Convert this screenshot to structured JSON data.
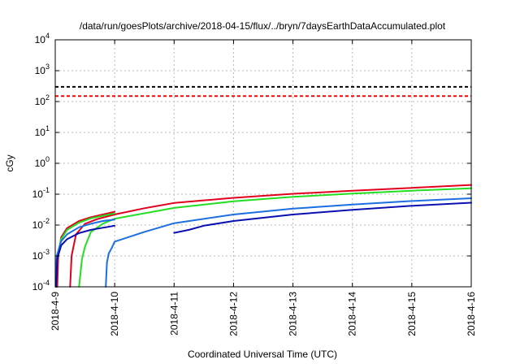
{
  "chart_data": {
    "type": "line",
    "title": "/data/run/goesPlots/archive/2018-04-15/flux/../bryn/7daysEarthDataAccumulated.plot",
    "xlabel": "Coordinated Universal Time (UTC)",
    "ylabel": "cGy",
    "xlim": [
      "2018-04-09",
      "2018-04-16"
    ],
    "ylim": [
      0.0001,
      10000
    ],
    "yscale": "log",
    "grid": true,
    "x_ticks": [
      "2018-4-9",
      "2018-4-10",
      "2018-4-11",
      "2018-4-12",
      "2018-4-13",
      "2018-4-14",
      "2018-4-15",
      "2018-4-16"
    ],
    "y_ticks": [
      {
        "base": "10",
        "exp": "-4"
      },
      {
        "base": "10",
        "exp": "-3"
      },
      {
        "base": "10",
        "exp": "-2"
      },
      {
        "base": "10",
        "exp": "-1"
      },
      {
        "base": "10",
        "exp": "0"
      },
      {
        "base": "10",
        "exp": "1"
      },
      {
        "base": "10",
        "exp": "2"
      },
      {
        "base": "10",
        "exp": "3"
      },
      {
        "base": "10",
        "exp": "4"
      }
    ],
    "reference_lines": [
      {
        "y": 300,
        "color": "#000000",
        "style": "dashed"
      },
      {
        "y": 150,
        "color": "#ff0000",
        "style": "dashed"
      }
    ],
    "series": [
      {
        "color": "#e0001b",
        "segments": [
          [
            [
              "2018-04-09T00:50",
              0.0001
            ],
            [
              "2018-04-09T01:12",
              0.001
            ],
            [
              "2018-04-09T02:24",
              0.004
            ],
            [
              "2018-04-09T04:48",
              0.008
            ],
            [
              "2018-04-09T09:36",
              0.0135
            ],
            [
              "2018-04-09T14:24",
              0.018
            ],
            [
              "2018-04-09T19:12",
              0.022
            ],
            [
              "2018-04-10T00:00",
              0.027
            ]
          ],
          [
            [
              "2018-04-09T06:00",
              0.0001
            ],
            [
              "2018-04-09T06:36",
              0.001
            ],
            [
              "2018-04-09T08:24",
              0.005
            ],
            [
              "2018-04-09T12:00",
              0.011
            ],
            [
              "2018-04-09T16:48",
              0.0155
            ],
            [
              "2018-04-10T00:00",
              0.022
            ],
            [
              "2018-04-10T12:00",
              0.035
            ],
            [
              "2018-04-11T00:00",
              0.052
            ],
            [
              "2018-04-12T00:00",
              0.076
            ],
            [
              "2018-04-13T00:00",
              0.103
            ],
            [
              "2018-04-14T00:00",
              0.13
            ],
            [
              "2018-04-15T00:00",
              0.16
            ],
            [
              "2018-04-16T00:00",
              0.2
            ]
          ]
        ]
      },
      {
        "color": "#22dd22",
        "segments": [
          [
            [
              "2018-04-09T00:24",
              0.0001
            ],
            [
              "2018-04-09T00:48",
              0.001
            ],
            [
              "2018-04-09T02:24",
              0.0035
            ],
            [
              "2018-04-09T04:48",
              0.007
            ],
            [
              "2018-04-09T09:36",
              0.012
            ],
            [
              "2018-04-09T14:24",
              0.0165
            ],
            [
              "2018-04-09T19:12",
              0.02
            ],
            [
              "2018-04-10T00:00",
              0.024
            ]
          ],
          [
            [
              "2018-04-09T09:36",
              0.0001
            ],
            [
              "2018-04-09T10:48",
              0.0008
            ],
            [
              "2018-04-09T12:00",
              0.002
            ],
            [
              "2018-04-09T14:24",
              0.006
            ],
            [
              "2018-04-09T19:12",
              0.011
            ],
            [
              "2018-04-10T00:00",
              0.016
            ],
            [
              "2018-04-11T00:00",
              0.036
            ],
            [
              "2018-04-12T00:00",
              0.059
            ],
            [
              "2018-04-13T00:00",
              0.082
            ],
            [
              "2018-04-14T00:00",
              0.105
            ],
            [
              "2018-04-15T00:00",
              0.13
            ],
            [
              "2018-04-16T00:00",
              0.155
            ]
          ]
        ]
      },
      {
        "color": "#1c6fe0",
        "segments": [
          [
            [
              "2018-04-09T00:12",
              0.0001
            ],
            [
              "2018-04-09T00:36",
              0.001
            ],
            [
              "2018-04-09T02:24",
              0.003
            ],
            [
              "2018-04-09T04:48",
              0.005
            ],
            [
              "2018-04-09T09:36",
              0.0085
            ],
            [
              "2018-04-09T14:24",
              0.011
            ],
            [
              "2018-04-09T19:12",
              0.0135
            ],
            [
              "2018-04-10T00:00",
              0.015
            ]
          ],
          [
            [
              "2018-04-09T20:24",
              0.0001
            ],
            [
              "2018-04-09T20:53",
              0.0006
            ],
            [
              "2018-04-09T21:36",
              0.0012
            ],
            [
              "2018-04-09T22:48",
              0.0018
            ],
            [
              "2018-04-10T00:00",
              0.0029
            ],
            [
              "2018-04-10T12:00",
              0.006
            ],
            [
              "2018-04-11T00:00",
              0.0115
            ],
            [
              "2018-04-12T00:00",
              0.022
            ],
            [
              "2018-04-13T00:00",
              0.034
            ],
            [
              "2018-04-14T00:00",
              0.046
            ],
            [
              "2018-04-15T00:00",
              0.06
            ],
            [
              "2018-04-16T00:00",
              0.074
            ]
          ]
        ]
      },
      {
        "color": "#0a0fb0",
        "segments": [
          [
            [
              "2018-04-09T00:24",
              0.0001
            ],
            [
              "2018-04-09T00:48",
              0.0008
            ],
            [
              "2018-04-09T02:24",
              0.0022
            ],
            [
              "2018-04-09T04:48",
              0.0035
            ],
            [
              "2018-04-09T09:36",
              0.0055
            ],
            [
              "2018-04-09T14:24",
              0.007
            ],
            [
              "2018-04-09T19:12",
              0.0082
            ],
            [
              "2018-04-10T00:00",
              0.0095
            ]
          ],
          [
            [
              "2018-04-11T00:00",
              0.0056
            ],
            [
              "2018-04-11T06:00",
              0.007
            ],
            [
              "2018-04-11T12:00",
              0.0095
            ],
            [
              "2018-04-12T00:00",
              0.0135
            ],
            [
              "2018-04-13T00:00",
              0.022
            ],
            [
              "2018-04-14T00:00",
              0.031
            ],
            [
              "2018-04-15T00:00",
              0.042
            ],
            [
              "2018-04-16T00:00",
              0.053
            ]
          ]
        ]
      }
    ]
  }
}
